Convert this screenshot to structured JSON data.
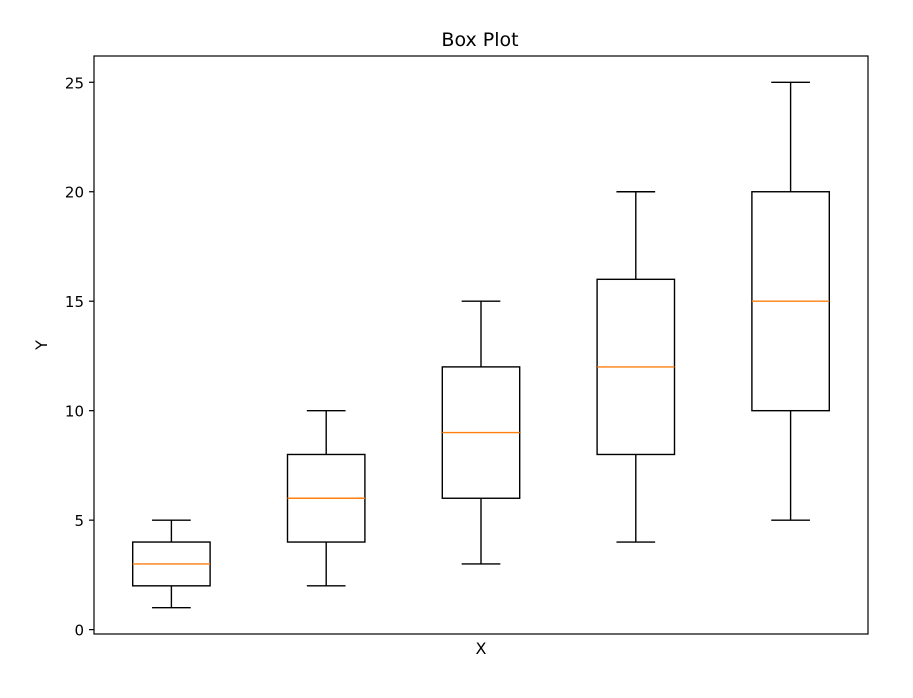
{
  "chart_data": {
    "type": "box",
    "title": "Box Plot",
    "xlabel": "X",
    "ylabel": "Y",
    "ylim": [
      -0.2,
      26.2
    ],
    "xlim": [
      0.5,
      5.5
    ],
    "yticks": [
      0,
      5,
      10,
      15,
      20,
      25
    ],
    "xticks_visible": false,
    "grid": false,
    "box_color": "#000000",
    "median_color": "#ff7f0e",
    "boxes": [
      {
        "position": 1,
        "whisker_low": 1,
        "q1": 2,
        "median": 3,
        "q3": 4,
        "whisker_high": 5
      },
      {
        "position": 2,
        "whisker_low": 2,
        "q1": 4,
        "median": 6,
        "q3": 8,
        "whisker_high": 10
      },
      {
        "position": 3,
        "whisker_low": 3,
        "q1": 6,
        "median": 9,
        "q3": 12,
        "whisker_high": 15
      },
      {
        "position": 4,
        "whisker_low": 4,
        "q1": 8,
        "median": 12,
        "q3": 16,
        "whisker_high": 20
      },
      {
        "position": 5,
        "whisker_low": 5,
        "q1": 10,
        "median": 15,
        "q3": 20,
        "whisker_high": 25
      }
    ]
  }
}
